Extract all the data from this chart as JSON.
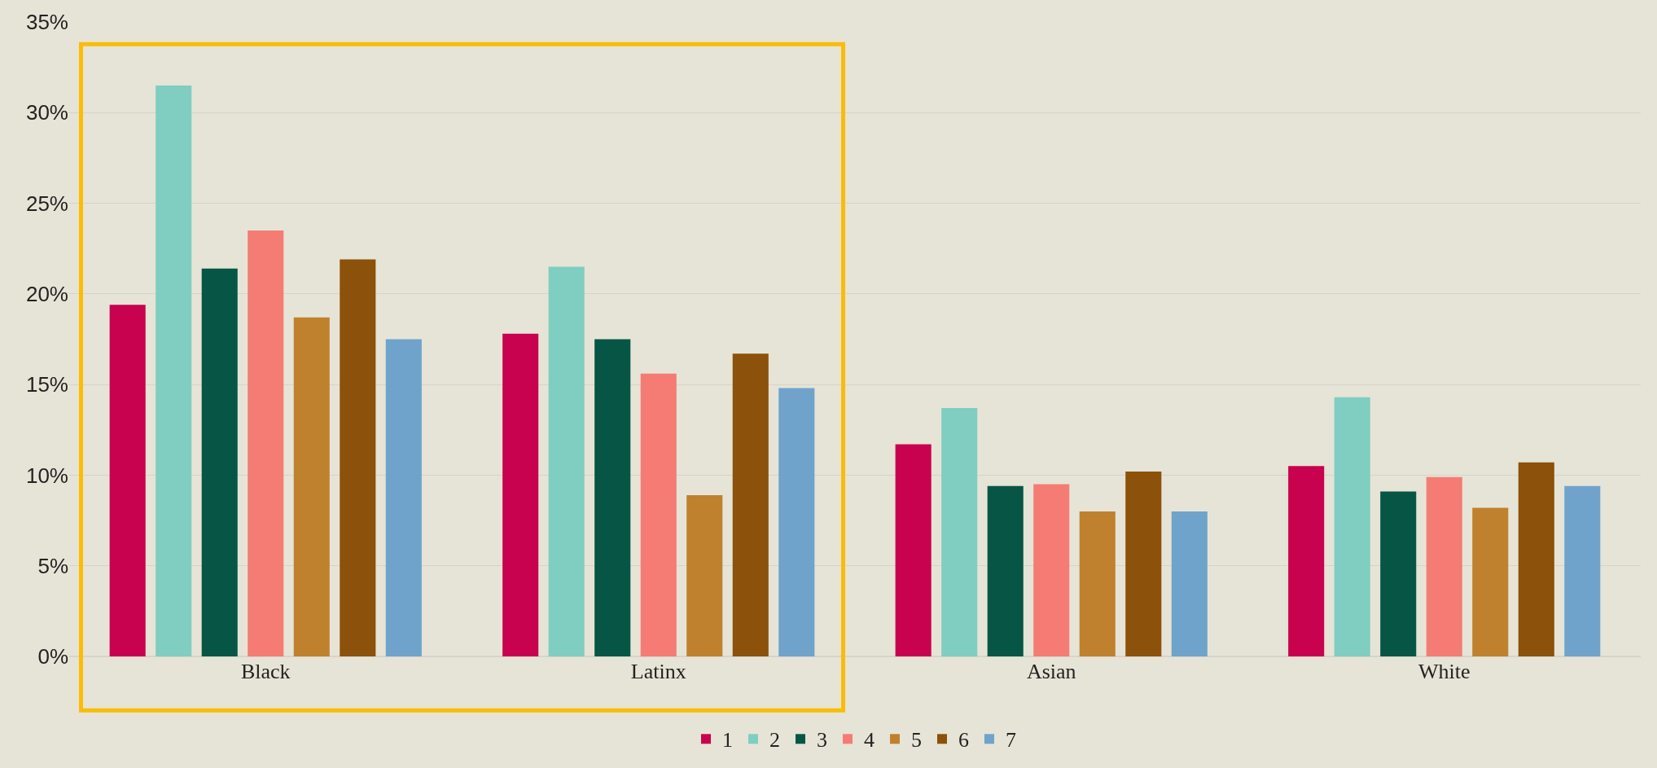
{
  "chart_data": {
    "type": "bar",
    "categories": [
      "Black",
      "Latinx",
      "Asian",
      "White"
    ],
    "series": [
      {
        "name": "1",
        "color": "#c8024e",
        "values": [
          19.4,
          17.8,
          11.7,
          10.5
        ]
      },
      {
        "name": "2",
        "color": "#80cdc1",
        "values": [
          31.5,
          21.5,
          13.7,
          14.3
        ]
      },
      {
        "name": "3",
        "color": "#075645",
        "values": [
          21.4,
          17.5,
          9.4,
          9.1
        ]
      },
      {
        "name": "4",
        "color": "#f47c75",
        "values": [
          23.5,
          15.6,
          9.5,
          9.9
        ]
      },
      {
        "name": "5",
        "color": "#bf812d",
        "values": [
          18.7,
          8.9,
          8.0,
          8.2
        ]
      },
      {
        "name": "6",
        "color": "#8c510a",
        "values": [
          21.9,
          16.7,
          10.2,
          10.7
        ]
      },
      {
        "name": "7",
        "color": "#6fa3cc",
        "values": [
          17.5,
          14.8,
          8.0,
          9.4
        ]
      }
    ],
    "ylim": [
      0,
      35
    ],
    "yticks": [
      {
        "value": 0,
        "label": "0%"
      },
      {
        "value": 5,
        "label": "5%"
      },
      {
        "value": 10,
        "label": "10%"
      },
      {
        "value": 15,
        "label": "15%"
      },
      {
        "value": 20,
        "label": "20%"
      },
      {
        "value": 25,
        "label": "25%"
      },
      {
        "value": 30,
        "label": "30%"
      },
      {
        "value": 35,
        "label": "35%"
      }
    ],
    "grid": "y",
    "legend": "bottom"
  }
}
